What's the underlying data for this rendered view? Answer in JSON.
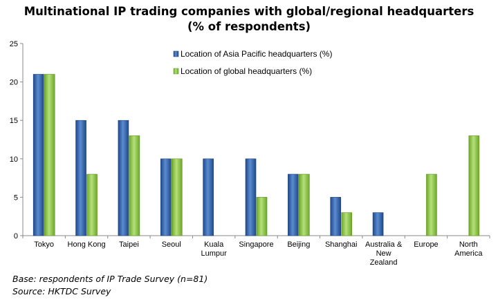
{
  "chart_data": {
    "type": "bar",
    "title_lines": [
      "Multinational IP trading companies with global/regional headquarters",
      "(% of respondents)"
    ],
    "categories": [
      [
        "Tokyo"
      ],
      [
        "Hong Kong"
      ],
      [
        "Taipei"
      ],
      [
        "Seoul"
      ],
      [
        "Kuala",
        "Lumpur"
      ],
      [
        "Singapore"
      ],
      [
        "Beijing"
      ],
      [
        "Shanghai"
      ],
      [
        "Australia &",
        "New",
        "Zealand"
      ],
      [
        "Europe"
      ],
      [
        "North",
        "America"
      ]
    ],
    "series": [
      {
        "name": "Location of Asia Pacific headquarters (%)",
        "color": "#2f5fa8",
        "values": [
          21,
          15,
          15,
          10,
          10,
          10,
          8,
          5,
          3,
          0,
          0
        ]
      },
      {
        "name": "Location of global headquarters (%)",
        "color": "#8cc63f",
        "values": [
          21,
          8,
          13,
          10,
          0,
          5,
          8,
          3,
          0,
          8,
          13
        ]
      }
    ],
    "ylim": [
      0,
      25
    ],
    "yticks": [
      0,
      5,
      10,
      15,
      20,
      25
    ],
    "grid": false,
    "legend_position": "top-center"
  },
  "footnotes": {
    "base": "Base: respondents of IP Trade Survey (n=81)",
    "source": "Source: HKTDC Survey"
  }
}
